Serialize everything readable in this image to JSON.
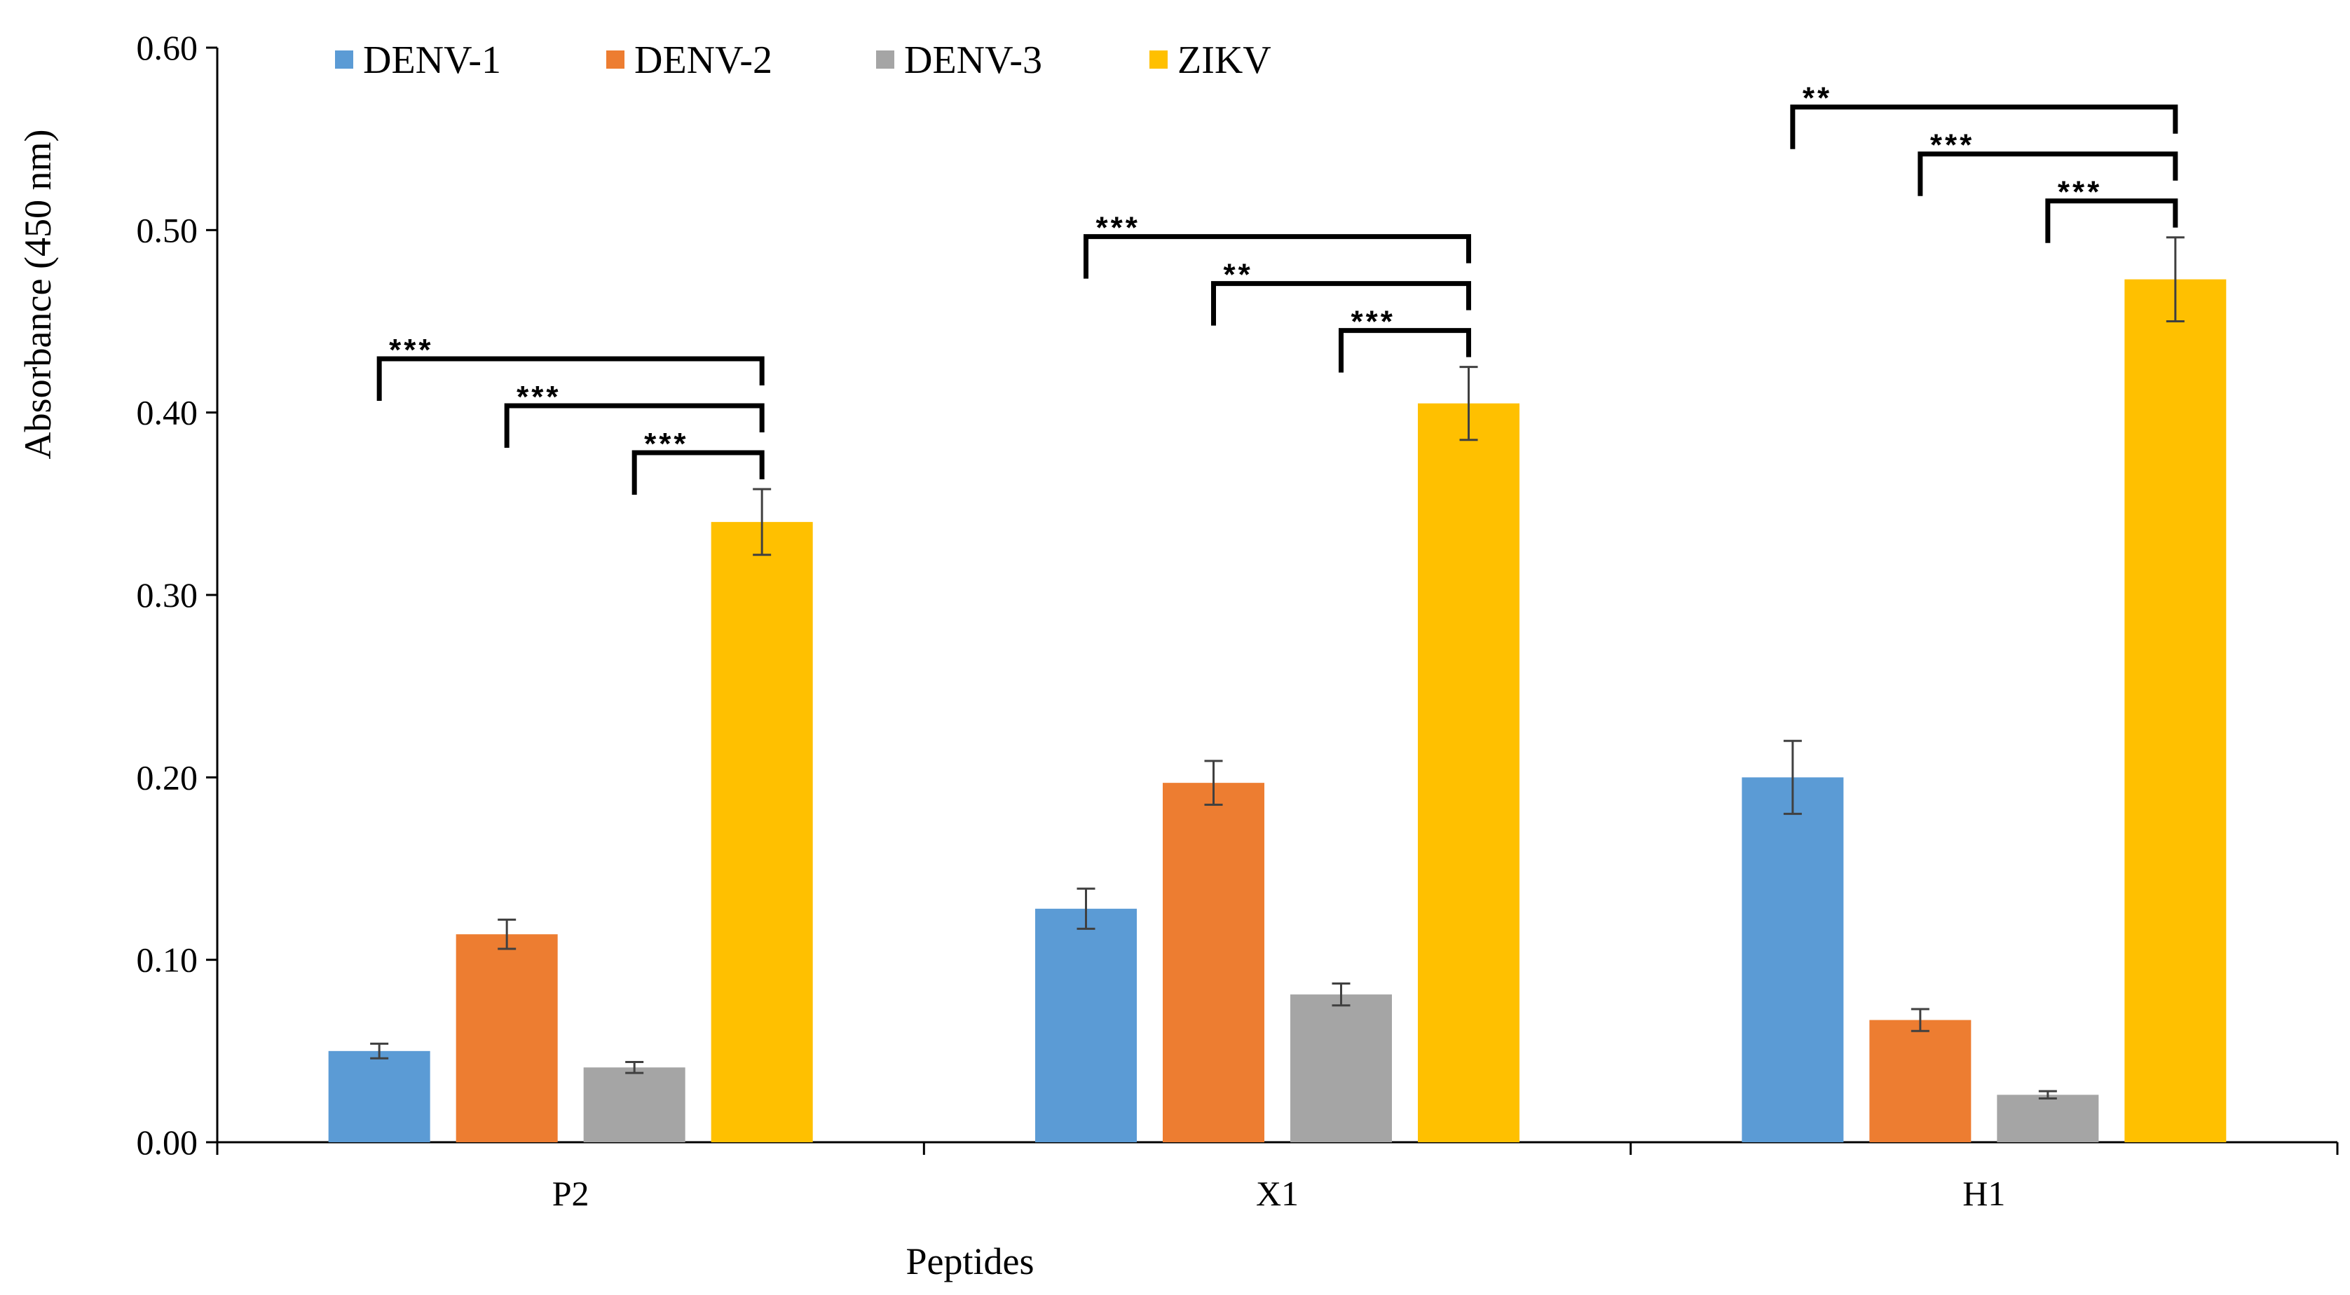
{
  "chart_data": {
    "type": "bar",
    "xlabel": "Peptides",
    "ylabel": "Absorbance (450 nm)",
    "ylim": [
      0,
      0.6
    ],
    "yticks": [
      "0.00",
      "0.10",
      "0.20",
      "0.30",
      "0.40",
      "0.50",
      "0.60"
    ],
    "categories": [
      "P2",
      "X1",
      "H1"
    ],
    "legend_position": "top",
    "grid": false,
    "series": [
      {
        "name": "DENV-1",
        "color": "#5b9bd5",
        "values": [
          0.05,
          0.128,
          0.2
        ],
        "errors": [
          0.004,
          0.011,
          0.02
        ]
      },
      {
        "name": "DENV-2",
        "color": "#ed7d31",
        "values": [
          0.114,
          0.197,
          0.067
        ],
        "errors": [
          0.008,
          0.012,
          0.006
        ]
      },
      {
        "name": "DENV-3",
        "color": "#a5a5a5",
        "values": [
          0.041,
          0.081,
          0.026
        ],
        "errors": [
          0.003,
          0.006,
          0.002
        ]
      },
      {
        "name": "ZIKV",
        "color": "#ffc000",
        "values": [
          0.34,
          0.405,
          0.473
        ],
        "errors": [
          0.018,
          0.02,
          0.023
        ]
      }
    ],
    "significance": [
      {
        "category": "P2",
        "comparisons": [
          {
            "from": "DENV-1",
            "to": "ZIKV",
            "label": "***"
          },
          {
            "from": "DENV-2",
            "to": "ZIKV",
            "label": "***"
          },
          {
            "from": "DENV-3",
            "to": "ZIKV",
            "label": "***"
          }
        ]
      },
      {
        "category": "X1",
        "comparisons": [
          {
            "from": "DENV-1",
            "to": "ZIKV",
            "label": "***"
          },
          {
            "from": "DENV-2",
            "to": "ZIKV",
            "label": "**"
          },
          {
            "from": "DENV-3",
            "to": "ZIKV",
            "label": "***"
          }
        ]
      },
      {
        "category": "H1",
        "comparisons": [
          {
            "from": "DENV-1",
            "to": "ZIKV",
            "label": "**"
          },
          {
            "from": "DENV-2",
            "to": "ZIKV",
            "label": "***"
          },
          {
            "from": "DENV-3",
            "to": "ZIKV",
            "label": "***"
          }
        ]
      }
    ]
  }
}
